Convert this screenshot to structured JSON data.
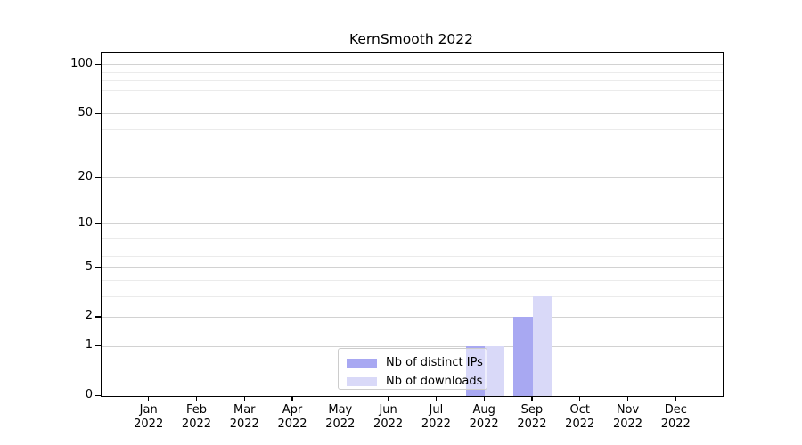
{
  "chart_data": {
    "type": "bar",
    "title": "KernSmooth 2022",
    "categories": [
      "Jan 2022",
      "Feb 2022",
      "Mar 2022",
      "Apr 2022",
      "May 2022",
      "Jun 2022",
      "Jul 2022",
      "Aug 2022",
      "Sep 2022",
      "Oct 2022",
      "Nov 2022",
      "Dec 2022"
    ],
    "months": [
      "Jan",
      "Feb",
      "Mar",
      "Apr",
      "May",
      "Jun",
      "Jul",
      "Aug",
      "Sep",
      "Oct",
      "Nov",
      "Dec"
    ],
    "year": "2022",
    "series": [
      {
        "name": "Nb of distinct IPs",
        "color": "#a8a8f2",
        "values": [
          0,
          0,
          0,
          0,
          0,
          0,
          0,
          1,
          2,
          0,
          0,
          0
        ]
      },
      {
        "name": "Nb of downloads",
        "color": "#d9d9f8",
        "values": [
          0,
          0,
          0,
          0,
          0,
          0,
          0,
          1,
          3,
          0,
          0,
          0
        ]
      }
    ],
    "yscale": "log1p",
    "ylim": [
      0,
      118
    ],
    "y_major_ticks": [
      0,
      1,
      2,
      5,
      10,
      20,
      50,
      100
    ],
    "y_minor_ticks": [
      3,
      4,
      6,
      7,
      8,
      9,
      30,
      40,
      60,
      70,
      80,
      90
    ],
    "grid": true,
    "legend_position": "inside-bottom-center"
  },
  "colors": {
    "spine": "#000000",
    "grid_major": "#d2d2d2",
    "grid_minor": "#ebebeb",
    "text": "#000000",
    "legend_border": "#cccccc"
  }
}
